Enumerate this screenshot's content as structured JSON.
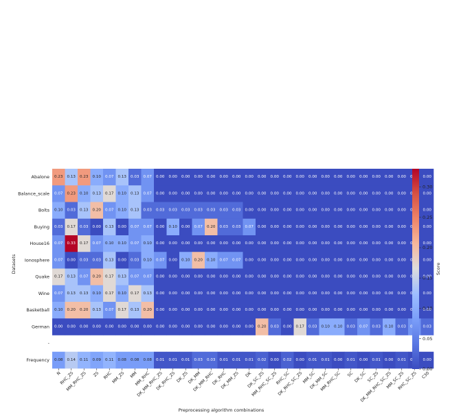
{
  "chart_data": {
    "type": "heatmap",
    "xlabel": "Preprocessing algorithm combinations",
    "ylabel": "Datasets",
    "colorbar": {
      "label": "Score",
      "min": 0.0,
      "max": 0.33,
      "ticks": [
        "0.00",
        "0.05",
        "0.10",
        "0.15",
        "0.20",
        "0.25",
        "0.30"
      ],
      "colormap": "coolwarm",
      "low_color": "#3b4cc0",
      "mid_color": "#dddddd",
      "high_color": "#b40426"
    },
    "columns": [
      "N",
      "RHC_ZS",
      "MM_RHC_ZS",
      "ZS",
      "RHC",
      "MM_ZS",
      "MM",
      "MM_RHC",
      "DK_MM_RHC_ZS",
      "DK_RHC_ZS",
      "DK_ZS",
      "DK_MM",
      "DK_MM_RHC",
      "DK_RHC",
      "DK_MM_ZS",
      "DK",
      "DK_SC_ZS",
      "MM_RHC_SC_ZS",
      "RHC_SC",
      "DK_RHC_SC_ZS",
      "MM_SC",
      "DK_MM_SC",
      "MM_RHC_SC",
      "SC",
      "DK_SC",
      "SC_ZS",
      "DK_MM_RHC_SC_ZS",
      "MM_SC_ZS",
      "RHC_SC_ZS",
      "C30"
    ],
    "rows": [
      {
        "name": "Abalone",
        "values": [
          0.23,
          0.13,
          0.23,
          0.1,
          0.07,
          0.13,
          0.03,
          0.07,
          0,
          0,
          0,
          0,
          0,
          0,
          0,
          0,
          0,
          0,
          0,
          0,
          0,
          0,
          0,
          0,
          0,
          0,
          0,
          0,
          0,
          0
        ]
      },
      {
        "name": "Balance_scale",
        "values": [
          0.07,
          0.23,
          0.1,
          0.13,
          0.17,
          0.1,
          0.13,
          0.07,
          0,
          0,
          0,
          0,
          0,
          0,
          0,
          0,
          0,
          0,
          0,
          0,
          0,
          0,
          0,
          0,
          0,
          0,
          0,
          0,
          0,
          0
        ]
      },
      {
        "name": "Bolts",
        "values": [
          0.1,
          0.03,
          0.13,
          0.2,
          0.07,
          0.1,
          0.13,
          0.03,
          0.03,
          0.03,
          0.03,
          0.03,
          0.03,
          0.03,
          0.03,
          0,
          0,
          0,
          0,
          0,
          0,
          0,
          0,
          0,
          0,
          0,
          0,
          0,
          0,
          0
        ]
      },
      {
        "name": "Buying",
        "values": [
          0.03,
          0.17,
          0.03,
          0.0,
          0.13,
          0.0,
          0.07,
          0.07,
          0.0,
          0.1,
          0.0,
          0.07,
          0.2,
          0.03,
          0.03,
          0.07,
          0,
          0,
          0,
          0,
          0,
          0,
          0,
          0,
          0,
          0,
          0,
          0,
          0,
          0
        ]
      },
      {
        "name": "House16",
        "values": [
          0.07,
          0.33,
          0.17,
          0.07,
          0.1,
          0.1,
          0.07,
          0.1,
          0,
          0,
          0,
          0,
          0,
          0,
          0,
          0,
          0,
          0,
          0,
          0,
          0,
          0,
          0,
          0,
          0,
          0,
          0,
          0,
          0,
          0
        ]
      },
      {
        "name": "Ionosphere",
        "values": [
          0.07,
          0.0,
          0.03,
          0.03,
          0.13,
          0.0,
          0.03,
          0.1,
          0.07,
          0.0,
          0.1,
          0.2,
          0.1,
          0.07,
          0.07,
          0,
          0,
          0,
          0,
          0,
          0,
          0,
          0,
          0,
          0,
          0,
          0,
          0,
          0,
          0
        ]
      },
      {
        "name": "Quake",
        "values": [
          0.17,
          0.13,
          0.07,
          0.2,
          0.17,
          0.13,
          0.07,
          0.07,
          0,
          0,
          0,
          0,
          0,
          0,
          0,
          0,
          0,
          0,
          0,
          0,
          0,
          0,
          0,
          0,
          0,
          0,
          0,
          0,
          0,
          0
        ]
      },
      {
        "name": "Wine",
        "values": [
          0.07,
          0.13,
          0.13,
          0.1,
          0.17,
          0.1,
          0.17,
          0.13,
          0,
          0,
          0,
          0,
          0,
          0,
          0,
          0,
          0,
          0,
          0,
          0,
          0,
          0,
          0,
          0,
          0,
          0,
          0,
          0,
          0,
          0
        ]
      },
      {
        "name": "Basketball",
        "values": [
          0.1,
          0.2,
          0.2,
          0.13,
          0.07,
          0.17,
          0.13,
          0.2,
          0,
          0,
          0,
          0,
          0,
          0,
          0,
          0,
          0,
          0,
          0,
          0,
          0,
          0,
          0,
          0,
          0,
          0,
          0,
          0,
          0,
          0
        ]
      },
      {
        "name": "German",
        "values": [
          0,
          0,
          0,
          0,
          0,
          0,
          0,
          0,
          0,
          0,
          0,
          0,
          0,
          0,
          0,
          0,
          0.2,
          0.03,
          0.0,
          0.17,
          0.03,
          0.1,
          0.1,
          0.03,
          0.07,
          0.03,
          0.1,
          0.03,
          0.07,
          0.03
        ]
      },
      {
        "name": "-",
        "values": null
      },
      {
        "name": "Frequency",
        "values": [
          0.08,
          0.14,
          0.11,
          0.09,
          0.11,
          0.08,
          0.08,
          0.08,
          0.01,
          0.01,
          0.01,
          0.03,
          0.03,
          0.01,
          0.01,
          0.01,
          0.02,
          0.0,
          0.02,
          0.0,
          0.01,
          0.01,
          0.0,
          0.01,
          0.0,
          0.01,
          0.0,
          0.01,
          0.0,
          0.0
        ]
      }
    ]
  }
}
